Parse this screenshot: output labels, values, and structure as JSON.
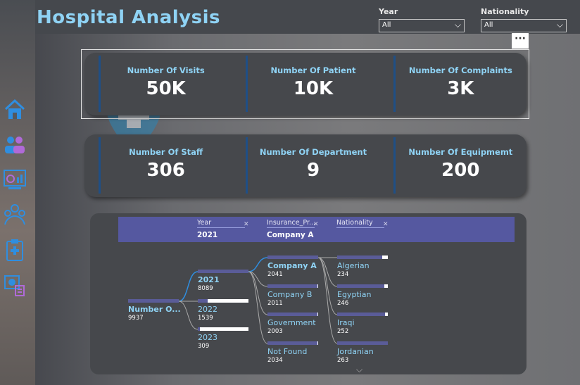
{
  "app": {
    "title": "Hospital Analysis"
  },
  "filters": {
    "year": {
      "label": "Year",
      "value": "All"
    },
    "nationality": {
      "label": "Nationality",
      "value": "All"
    }
  },
  "more_label": "···",
  "kpi_row1": [
    {
      "label": "Number Of Visits",
      "value": "50K"
    },
    {
      "label": "Number Of Patient",
      "value": "10K"
    },
    {
      "label": "Number Of Complaints",
      "value": "3K"
    }
  ],
  "kpi_row2": [
    {
      "label": "Number Of Staff",
      "value": "306"
    },
    {
      "label": "Number Of Department",
      "value": "9"
    },
    {
      "label": "Number Of Equipmemt",
      "value": "200"
    }
  ],
  "nav_icons": [
    "home-icon",
    "people-icon",
    "dashboard-icon",
    "group-icon",
    "clipboard-icon",
    "money-report-icon"
  ],
  "tree": {
    "breadcrumb": [
      {
        "header": "Year",
        "value": "2021"
      },
      {
        "header": "Insurance_Pr...",
        "value": "Company A"
      },
      {
        "header": "Nationality",
        "value": ""
      }
    ],
    "root": {
      "name": "Number O...",
      "value": "9937",
      "fraction": 1.0
    },
    "years": [
      {
        "name": "2021",
        "value": "8089",
        "fraction": 1.0,
        "selected": true
      },
      {
        "name": "2022",
        "value": "1539",
        "fraction": 0.19
      },
      {
        "name": "2023",
        "value": "309",
        "fraction": 0.04
      }
    ],
    "companies": [
      {
        "name": "Company A",
        "value": "2041",
        "fraction": 1.0,
        "selected": true
      },
      {
        "name": "Company B",
        "value": "2011",
        "fraction": 0.98
      },
      {
        "name": "Government",
        "value": "2003",
        "fraction": 0.98
      },
      {
        "name": "Not Found",
        "value": "2034",
        "fraction": 0.99
      }
    ],
    "nationalities": [
      {
        "name": "Algerian",
        "value": "234",
        "fraction": 0.89
      },
      {
        "name": "Egyptian",
        "value": "246",
        "fraction": 0.93
      },
      {
        "name": "Iraqi",
        "value": "252",
        "fraction": 0.95
      },
      {
        "name": "Jordanian",
        "value": "263",
        "fraction": 1.0
      }
    ]
  }
}
